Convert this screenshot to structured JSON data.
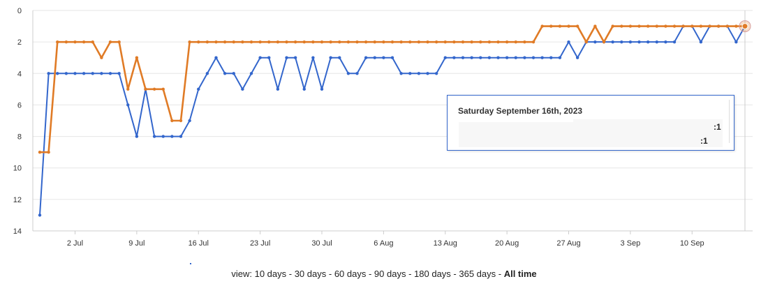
{
  "chart_data": {
    "type": "line",
    "title": "",
    "xlabel": "",
    "ylabel": "",
    "ylim": [
      0,
      14
    ],
    "y_reversed": true,
    "y_ticks": [
      0,
      2,
      4,
      6,
      8,
      10,
      12,
      14
    ],
    "x_ticks": [
      "2 Jul",
      "9 Jul",
      "16 Jul",
      "23 Jul",
      "30 Jul",
      "6 Aug",
      "13 Aug",
      "20 Aug",
      "27 Aug",
      "3 Sep",
      "10 Sep"
    ],
    "x_first_day": "2023-06-28",
    "x_last_day": "2023-09-16",
    "grid": true,
    "legend": "none",
    "series": [
      {
        "color": "#3366cc",
        "values": [
          13,
          4,
          4,
          4,
          4,
          4,
          4,
          4,
          4,
          4,
          6,
          8,
          5,
          8,
          8,
          8,
          8,
          7,
          5,
          4,
          3,
          4,
          4,
          5,
          4,
          3,
          3,
          5,
          3,
          3,
          5,
          3,
          5,
          3,
          3,
          4,
          4,
          3,
          3,
          3,
          3,
          4,
          4,
          4,
          4,
          4,
          3,
          3,
          3,
          3,
          3,
          3,
          3,
          3,
          3,
          3,
          3,
          3,
          3,
          3,
          2,
          3,
          2,
          2,
          2,
          2,
          2,
          2,
          2,
          2,
          2,
          2,
          2,
          1,
          1,
          2,
          1,
          1,
          1,
          2,
          1
        ]
      },
      {
        "color": "#e07b26",
        "values": [
          9,
          9,
          2,
          2,
          2,
          2,
          2,
          3,
          2,
          2,
          5,
          3,
          5,
          5,
          5,
          7,
          7,
          2,
          2,
          2,
          2,
          2,
          2,
          2,
          2,
          2,
          2,
          2,
          2,
          2,
          2,
          2,
          2,
          2,
          2,
          2,
          2,
          2,
          2,
          2,
          2,
          2,
          2,
          2,
          2,
          2,
          2,
          2,
          2,
          2,
          2,
          2,
          2,
          2,
          2,
          2,
          2,
          1,
          1,
          1,
          1,
          1,
          2,
          1,
          2,
          1,
          1,
          1,
          1,
          1,
          1,
          1,
          1,
          1,
          1,
          1,
          1,
          1,
          1,
          1,
          1
        ]
      }
    ],
    "tooltip": {
      "title": "Saturday September 16th, 2023",
      "values": [
        ":1",
        ":1"
      ]
    }
  },
  "footer": {
    "prefix": "view:",
    "options": [
      "10 days",
      "30 days",
      "60 days",
      "90 days",
      "180 days",
      "365 days",
      "All time"
    ],
    "active": "All time",
    "separator": "-"
  }
}
